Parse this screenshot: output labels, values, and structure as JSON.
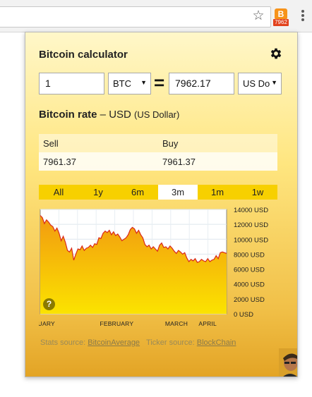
{
  "browser": {
    "star_icon": "star-icon",
    "extension_badge": "7962",
    "extension_coin": "B",
    "menu_icon": "menu-dots-icon"
  },
  "popup": {
    "title": "Bitcoin calculator",
    "settings_icon": "gear-icon",
    "converter": {
      "amount": "1",
      "from_currency": "BTC",
      "equals": "=",
      "result": "7962.17",
      "to_currency": "US Do"
    },
    "rate": {
      "label": "Bitcoin rate",
      "dash": " – ",
      "currency_code": "USD",
      "currency_name": "(US Dollar)"
    },
    "table": {
      "headers": [
        "Sell",
        "Buy"
      ],
      "values": [
        "7961.37",
        "7961.37"
      ]
    },
    "periods": [
      "All",
      "1y",
      "6m",
      "3m",
      "1m",
      "1w"
    ],
    "active_period": "3m",
    "help_icon": "?",
    "footer": {
      "stats_label": "Stats source:",
      "stats_link": "BitcoinAverage",
      "ticker_label": "Ticker source:",
      "ticker_link": "BlockChain"
    },
    "colors": {
      "accent": "#f7d000",
      "line": "#d9281a"
    }
  },
  "chart_data": {
    "type": "area",
    "x": [
      0,
      1,
      2,
      3,
      4,
      5,
      6,
      7,
      8,
      9,
      10,
      11,
      12,
      13,
      14,
      15,
      16,
      17,
      18,
      19,
      20,
      21,
      22,
      23,
      24,
      25,
      26,
      27,
      28,
      29,
      30,
      31,
      32,
      33,
      34,
      35,
      36,
      37,
      38,
      39,
      40,
      41,
      42,
      43,
      44,
      45,
      46,
      47,
      48,
      49,
      50,
      51,
      52,
      53,
      54,
      55,
      56,
      57,
      58,
      59,
      60,
      61,
      62,
      63,
      64,
      65,
      66,
      67,
      68,
      69,
      70,
      71,
      72,
      73,
      74,
      75,
      76,
      77,
      78,
      79,
      80,
      81,
      82,
      83,
      84,
      85,
      86,
      87,
      88,
      89
    ],
    "values": [
      13200,
      12900,
      12100,
      12600,
      12300,
      11900,
      11700,
      11100,
      11500,
      10800,
      9800,
      10400,
      9600,
      8500,
      8300,
      8800,
      7200,
      8000,
      8700,
      8600,
      9100,
      8500,
      8800,
      8900,
      9200,
      8900,
      9400,
      9300,
      10200,
      10100,
      10800,
      11100,
      10900,
      11200,
      10600,
      11000,
      10500,
      10700,
      10300,
      9800,
      10000,
      10200,
      10600,
      11300,
      11600,
      11400,
      10800,
      11200,
      10600,
      10200,
      9300,
      9000,
      9200,
      8700,
      9000,
      8700,
      8400,
      9200,
      9500,
      8900,
      9000,
      8700,
      9100,
      8800,
      8400,
      8100,
      8500,
      8300,
      8000,
      8200,
      7500,
      7000,
      7300,
      7100,
      7400,
      6900,
      7000,
      7300,
      7100,
      7000,
      7400,
      7000,
      7200,
      7300,
      7800,
      7400,
      8200,
      8300,
      8200,
      8100
    ],
    "month_labels": [
      "January",
      "February",
      "March",
      "April"
    ],
    "y_tick_labels": [
      "14000 USD",
      "12000 USD",
      "10000 USD",
      "8000 USD",
      "6000 USD",
      "4000 USD",
      "2000 USD",
      "0 USD"
    ],
    "ylim": [
      0,
      14000
    ],
    "grid": true
  }
}
